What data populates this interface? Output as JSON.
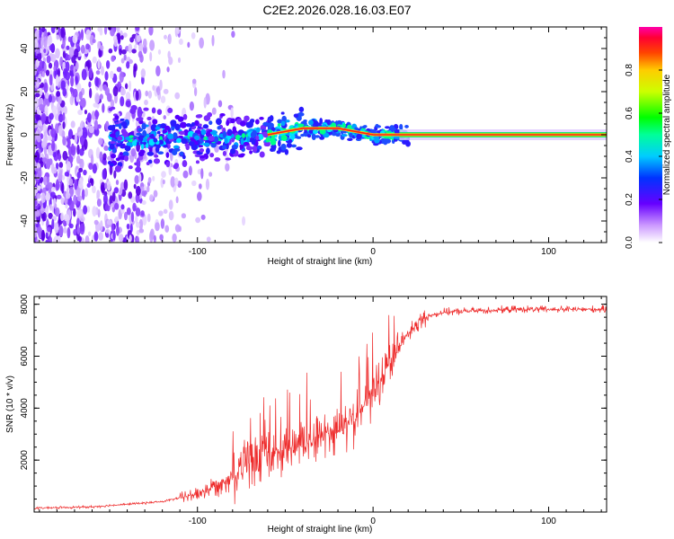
{
  "title": "C2E2.2026.028.16.03.E07",
  "chart_data": [
    {
      "type": "heatmap",
      "xlabel": "Height of straight line (km)",
      "ylabel": "Frequency (Hz)",
      "xlim": [
        -193,
        133
      ],
      "ylim": [
        -50,
        50
      ],
      "xticks": [
        -100,
        0,
        100
      ],
      "xtick_labels": [
        "-100",
        "0",
        "100"
      ],
      "yticks": [
        -40,
        -20,
        0,
        20,
        40
      ],
      "ytick_labels": [
        "-40",
        "-20",
        "0",
        "20",
        "40"
      ],
      "ridge": {
        "description_x": [
          -100,
          -80,
          -60,
          -40,
          -20,
          0,
          20,
          60,
          100,
          133
        ],
        "frequency_hz": [
          -2,
          -1,
          0,
          3,
          3,
          0,
          0,
          0,
          0,
          0
        ]
      },
      "colorbar": {
        "label": "Normalized spectral amplitude",
        "range": [
          0,
          1
        ],
        "ticks": [
          0,
          0.2,
          0.4,
          0.6,
          0.8
        ],
        "tick_labels": [
          "0.0",
          "0.2",
          "0.4",
          "0.6",
          "0.8"
        ]
      }
    },
    {
      "type": "line",
      "xlabel": "Height of straight line (km)",
      "ylabel": "SNR (10 * v/v)",
      "xlim": [
        -193,
        133
      ],
      "ylim": [
        0,
        8300
      ],
      "xticks": [
        -100,
        0,
        100
      ],
      "xtick_labels": [
        "-100",
        "0",
        "100"
      ],
      "yticks": [
        2000,
        4000,
        6000,
        8000
      ],
      "ytick_labels": [
        "2000",
        "4000",
        "6000",
        "8000"
      ],
      "color": "#ee2b2b",
      "x": [
        -193,
        -160,
        -140,
        -120,
        -100,
        -90,
        -80,
        -70,
        -60,
        -50,
        -40,
        -30,
        -20,
        -10,
        0,
        10,
        20,
        30,
        40,
        60,
        80,
        100,
        120,
        133
      ],
      "y_mean": [
        150,
        200,
        300,
        400,
        700,
        1000,
        1400,
        1900,
        2200,
        2400,
        2600,
        2900,
        3200,
        3700,
        4500,
        5800,
        6900,
        7500,
        7700,
        7750,
        7800,
        7800,
        7800,
        7800
      ]
    }
  ]
}
